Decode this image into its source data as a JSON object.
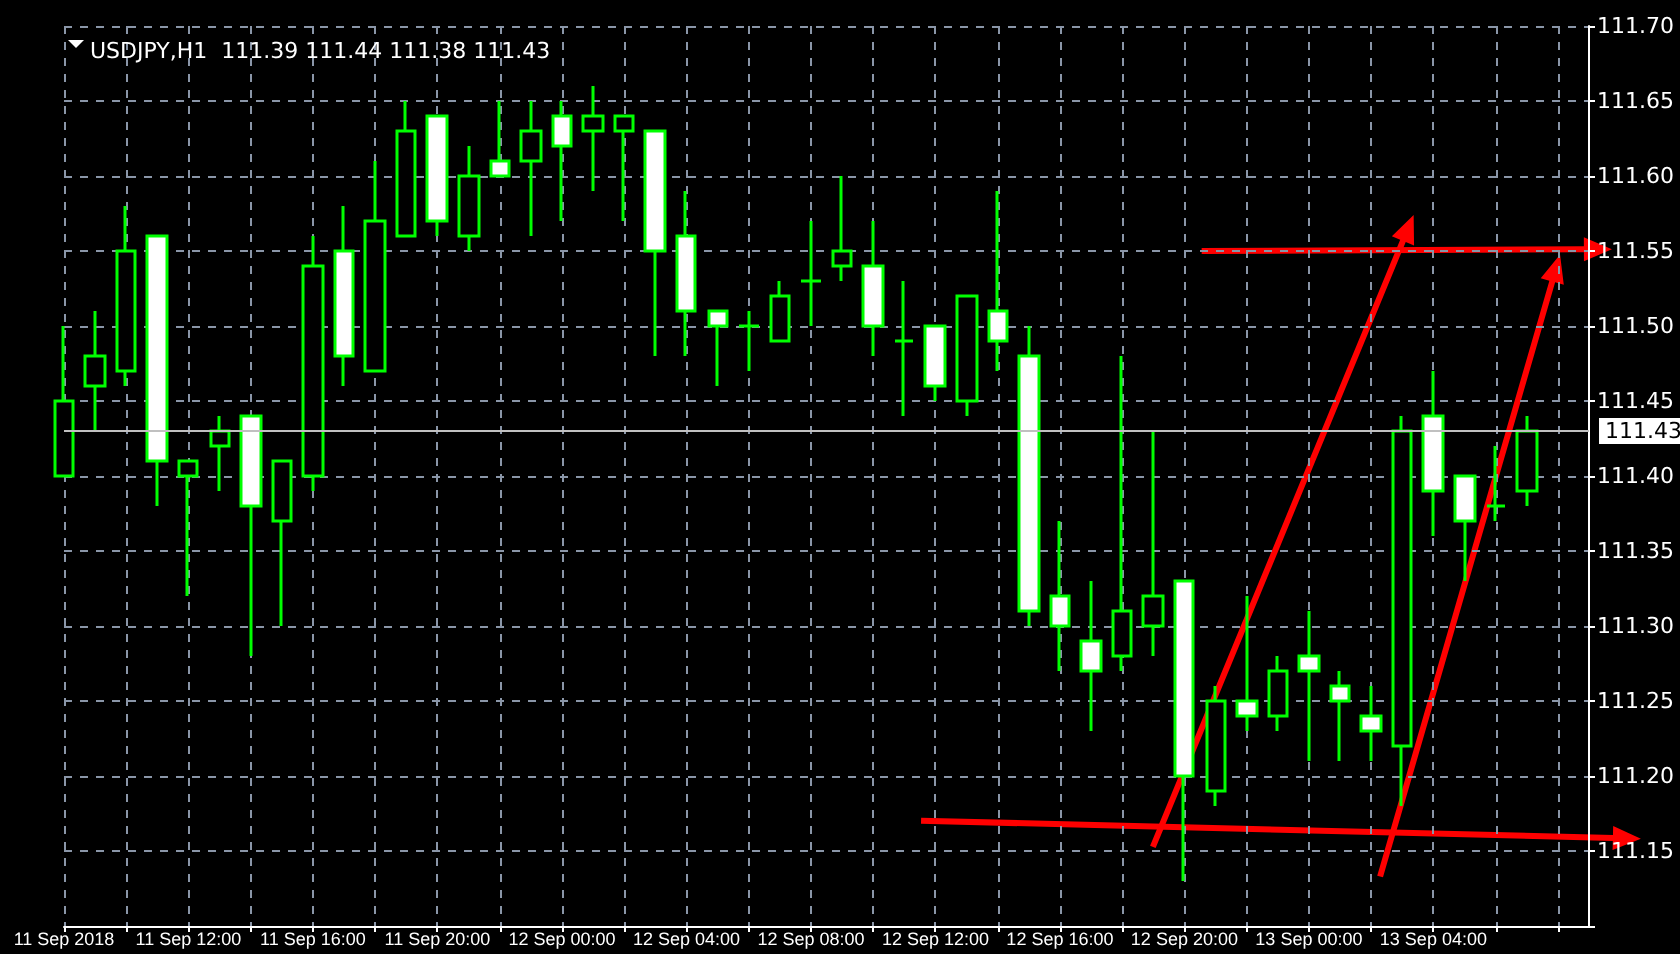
{
  "chart_data": {
    "type": "candlestick",
    "title": "USDJPY,H1  111.39 111.44 111.38 111.43",
    "color": "#00ff00",
    "categories": [
      "11 Sep 2018",
      null,
      null,
      null,
      "11 Sep 12:00",
      null,
      null,
      null,
      "11 Sep 16:00",
      null,
      null,
      null,
      "11 Sep 20:00",
      null,
      null,
      null,
      "12 Sep 00:00",
      null,
      null,
      null,
      "12 Sep 04:00",
      null,
      null,
      null,
      "12 Sep 08:00",
      null,
      null,
      null,
      "12 Sep 12:00",
      null,
      null,
      null,
      "12 Sep 16:00",
      null,
      null,
      null,
      "12 Sep 20:00",
      null,
      null,
      null,
      "13 Sep 00:00",
      null,
      null,
      null,
      "13 Sep 04:00",
      null,
      null,
      null
    ],
    "ohlc": [
      [
        111.4,
        111.5,
        111.4,
        111.45
      ],
      [
        111.46,
        111.51,
        111.43,
        111.48
      ],
      [
        111.47,
        111.58,
        111.46,
        111.55
      ],
      [
        111.56,
        111.56,
        111.38,
        111.41
      ],
      [
        111.4,
        111.41,
        111.32,
        111.41
      ],
      [
        111.42,
        111.44,
        111.39,
        111.43
      ],
      [
        111.44,
        111.44,
        111.28,
        111.38
      ],
      [
        111.37,
        111.41,
        111.3,
        111.41
      ],
      [
        111.4,
        111.56,
        111.39,
        111.54
      ],
      [
        111.55,
        111.58,
        111.46,
        111.48
      ],
      [
        111.47,
        111.61,
        111.47,
        111.57
      ],
      [
        111.56,
        111.65,
        111.56,
        111.63
      ],
      [
        111.64,
        111.64,
        111.56,
        111.57
      ],
      [
        111.56,
        111.62,
        111.55,
        111.6
      ],
      [
        111.61,
        111.65,
        111.6,
        111.6
      ],
      [
        111.61,
        111.65,
        111.56,
        111.63
      ],
      [
        111.64,
        111.65,
        111.57,
        111.62
      ],
      [
        111.63,
        111.66,
        111.59,
        111.64
      ],
      [
        111.63,
        111.64,
        111.57,
        111.64
      ],
      [
        111.63,
        111.63,
        111.48,
        111.55
      ],
      [
        111.56,
        111.59,
        111.48,
        111.51
      ],
      [
        111.51,
        111.51,
        111.46,
        111.5
      ],
      [
        111.5,
        111.51,
        111.47,
        111.5
      ],
      [
        111.49,
        111.53,
        111.49,
        111.52
      ],
      [
        111.53,
        111.57,
        111.5,
        111.53
      ],
      [
        111.54,
        111.6,
        111.53,
        111.55
      ],
      [
        111.54,
        111.57,
        111.48,
        111.5
      ],
      [
        111.49,
        111.53,
        111.44,
        111.49
      ],
      [
        111.5,
        111.5,
        111.45,
        111.46
      ],
      [
        111.45,
        111.52,
        111.44,
        111.52
      ],
      [
        111.51,
        111.59,
        111.47,
        111.49
      ],
      [
        111.48,
        111.5,
        111.3,
        111.31
      ],
      [
        111.32,
        111.37,
        111.27,
        111.3
      ],
      [
        111.29,
        111.33,
        111.23,
        111.27
      ],
      [
        111.28,
        111.48,
        111.27,
        111.31
      ],
      [
        111.3,
        111.43,
        111.28,
        111.32
      ],
      [
        111.33,
        111.33,
        111.13,
        111.2
      ],
      [
        111.19,
        111.26,
        111.18,
        111.25
      ],
      [
        111.25,
        111.32,
        111.23,
        111.24
      ],
      [
        111.24,
        111.28,
        111.23,
        111.27
      ],
      [
        111.28,
        111.31,
        111.21,
        111.27
      ],
      [
        111.26,
        111.27,
        111.21,
        111.25
      ],
      [
        111.24,
        111.26,
        111.21,
        111.23
      ],
      [
        111.22,
        111.44,
        111.18,
        111.43
      ],
      [
        111.44,
        111.47,
        111.36,
        111.39
      ],
      [
        111.4,
        111.4,
        111.33,
        111.37
      ],
      [
        111.38,
        111.42,
        111.37,
        111.38
      ],
      [
        111.39,
        111.44,
        111.38,
        111.43
      ]
    ],
    "ylim": [
      111.1,
      111.7
    ],
    "yticks": [
      {
        "value": 111.1,
        "label": null
      },
      {
        "value": 111.15,
        "label": "111.15"
      },
      {
        "value": 111.2,
        "label": "111.20"
      },
      {
        "value": 111.25,
        "label": "111.25"
      },
      {
        "value": 111.3,
        "label": "111.30"
      },
      {
        "value": 111.35,
        "label": "111.35"
      },
      {
        "value": 111.4,
        "label": "111.40"
      },
      {
        "value": 111.45,
        "label": "111.45"
      },
      {
        "value": 111.5,
        "label": "111.50"
      },
      {
        "value": 111.55,
        "label": "111.55"
      },
      {
        "value": 111.6,
        "label": "111.60"
      },
      {
        "value": 111.65,
        "label": "111.65"
      },
      {
        "value": 111.7,
        "label": "111.70"
      }
    ],
    "grid": true,
    "ref_lines": [
      {
        "axis": "y",
        "value": 111.43,
        "label": "111.43",
        "color": "#c0c0c0"
      }
    ]
  }
}
